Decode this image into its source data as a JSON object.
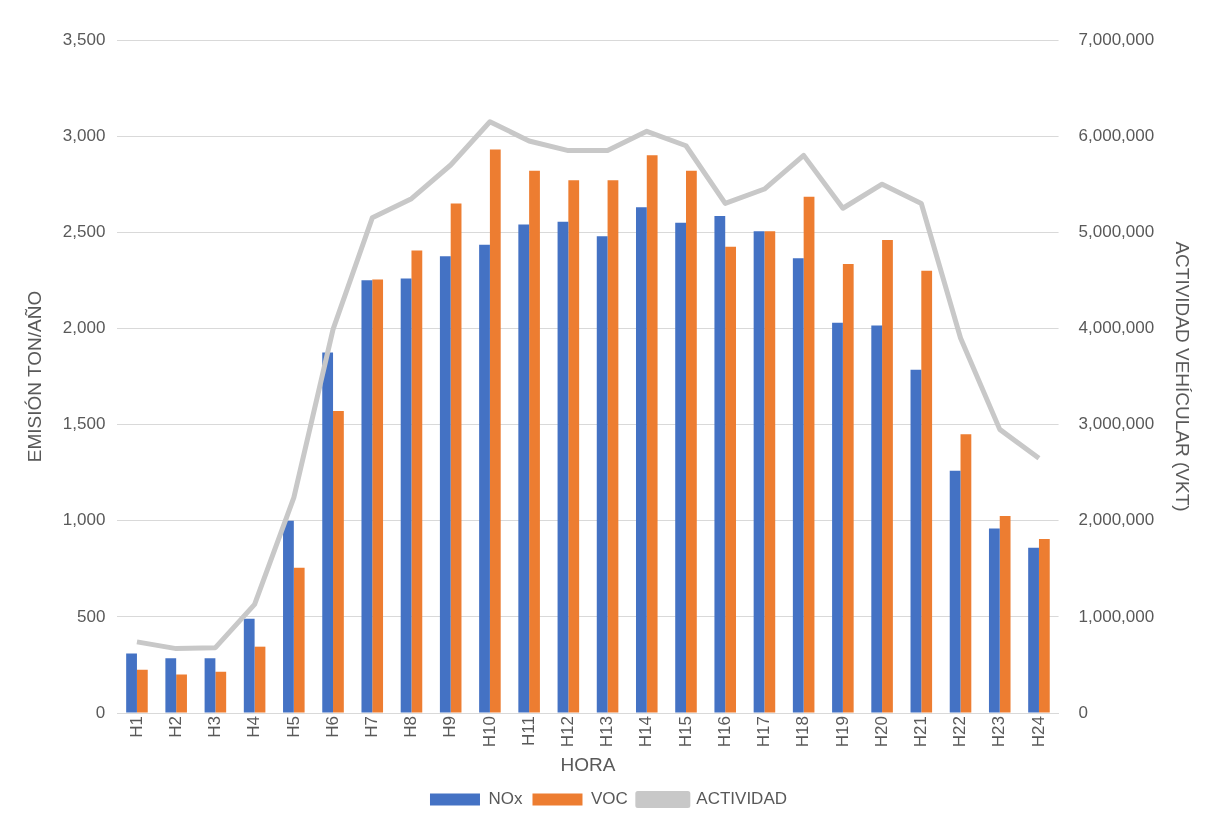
{
  "chart_data": {
    "type": "bar",
    "xlabel": "HORA",
    "ylabel": "EMISIÓN TON/AÑO",
    "y2label": "ACTIVIDAD VEHÍCULAR (VKT)",
    "categories": [
      "H1",
      "H2",
      "H3",
      "H4",
      "H5",
      "H6",
      "H7",
      "H8",
      "H9",
      "H10",
      "H11",
      "H12",
      "H13",
      "H14",
      "H15",
      "H16",
      "H17",
      "H18",
      "H19",
      "H20",
      "H21",
      "H22",
      "H23",
      "H24"
    ],
    "series": [
      {
        "name": "NOx",
        "color": "#4472c4",
        "values": [
          310,
          285,
          285,
          490,
          1000,
          1875,
          2250,
          2260,
          2375,
          2435,
          2540,
          2555,
          2480,
          2630,
          2550,
          2585,
          2505,
          2365,
          2030,
          2015,
          1785,
          1260,
          960,
          860
        ]
      },
      {
        "name": "VOC",
        "color": "#ed7d31",
        "values": [
          225,
          200,
          215,
          345,
          755,
          1570,
          2255,
          2405,
          2650,
          2930,
          2820,
          2770,
          2770,
          2900,
          2820,
          2425,
          2505,
          2685,
          2335,
          2460,
          2300,
          1450,
          1025,
          905
        ]
      },
      {
        "name": "ACTIVIDAD",
        "type": "line",
        "axis": "y2",
        "color": "#c8c8c8",
        "marker": "none",
        "values": [
          740000,
          670000,
          680000,
          1130000,
          2240000,
          3990000,
          5150000,
          5350000,
          5700000,
          6150000,
          5950000,
          5850000,
          5850000,
          6050000,
          5900000,
          5300000,
          5450000,
          5800000,
          5250000,
          5500000,
          5300000,
          3900000,
          2950000,
          2650000
        ]
      }
    ],
    "ylim": [
      0,
      3500
    ],
    "yticks": [
      0,
      500,
      {
        "value": 1000,
        "label": "1,000"
      },
      {
        "value": 1500,
        "label": "1,500"
      },
      {
        "value": 2000,
        "label": "2,000"
      },
      {
        "value": 2500,
        "label": "2,500"
      },
      {
        "value": 3000,
        "label": "3,000"
      },
      {
        "value": 3500,
        "label": "3,500"
      }
    ],
    "y2lim": [
      0,
      7000000
    ],
    "y2ticks": [
      0,
      {
        "value": 1000000,
        "label": "1,000,000"
      },
      {
        "value": 2000000,
        "label": "2,000,000"
      },
      {
        "value": 3000000,
        "label": "3,000,000"
      },
      {
        "value": 4000000,
        "label": "4,000,000"
      },
      {
        "value": 5000000,
        "label": "5,000,000"
      },
      {
        "value": 6000000,
        "label": "6,000,000"
      },
      {
        "value": 7000000,
        "label": "7,000,000"
      }
    ],
    "grid": "y",
    "legend": "bottom"
  }
}
